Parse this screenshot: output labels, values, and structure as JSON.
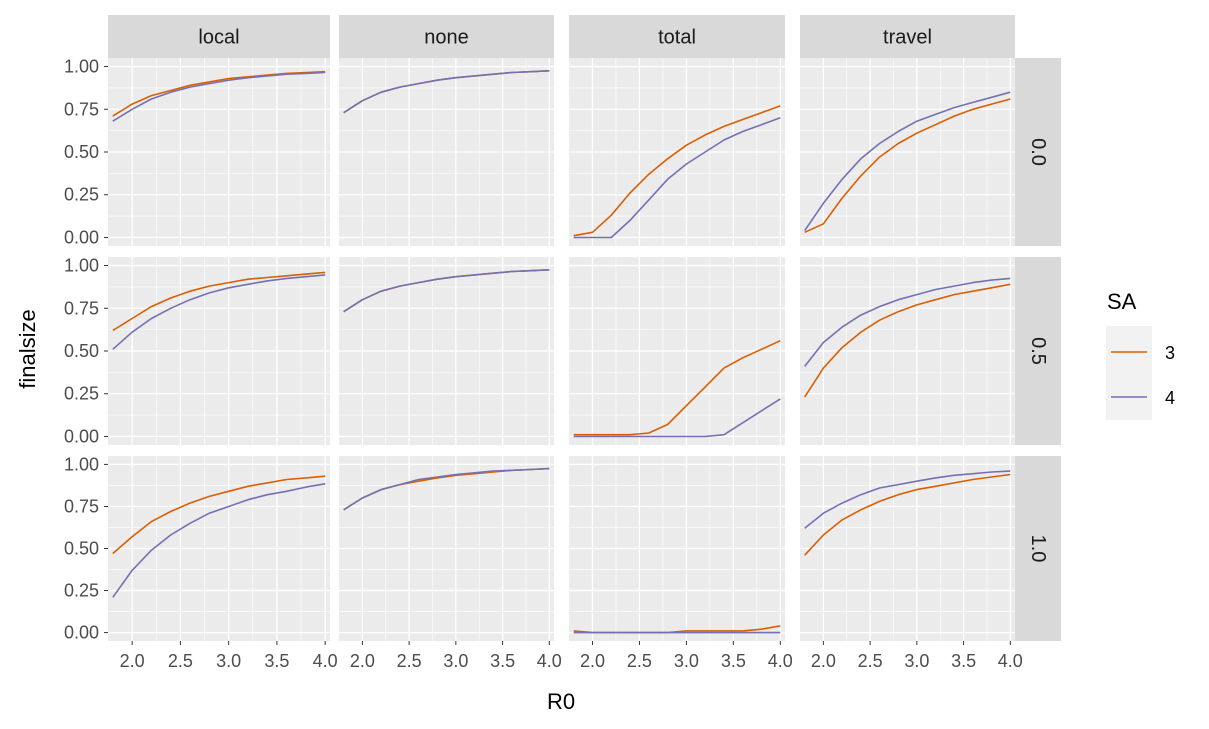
{
  "chart_data": {
    "type": "line",
    "facet_columns": [
      "local",
      "none",
      "total",
      "travel"
    ],
    "facet_rows": [
      "0.0",
      "0.5",
      "1.0"
    ],
    "xlabel": "R0",
    "ylabel": "finalsize",
    "xlim": [
      1.75,
      4.05
    ],
    "ylim": [
      -0.05,
      1.05
    ],
    "x_ticks": [
      "2.0",
      "2.5",
      "3.0",
      "3.5",
      "4.0"
    ],
    "y_ticks": [
      "0.00",
      "0.25",
      "0.50",
      "0.75",
      "1.00"
    ],
    "x": [
      1.8,
      2.0,
      2.2,
      2.4,
      2.6,
      2.8,
      3.0,
      3.2,
      3.4,
      3.6,
      3.8,
      4.0
    ],
    "legend": {
      "title": "SA",
      "position": "right",
      "entries": [
        "3",
        "4"
      ]
    },
    "colors": {
      "3": "#d95f02",
      "4": "#7570b3"
    },
    "background": {
      "panel": "#ebebeb",
      "strip": "#d9d9d9",
      "grid": "#ffffff"
    },
    "panels": [
      {
        "col": "local",
        "row": "0.0",
        "series": [
          {
            "name": "3",
            "values": [
              0.71,
              0.78,
              0.83,
              0.86,
              0.89,
              0.91,
              0.93,
              0.94,
              0.95,
              0.96,
              0.965,
              0.97
            ]
          },
          {
            "name": "4",
            "values": [
              0.68,
              0.75,
              0.81,
              0.85,
              0.88,
              0.9,
              0.92,
              0.935,
              0.945,
              0.955,
              0.96,
              0.965
            ]
          }
        ]
      },
      {
        "col": "none",
        "row": "0.0",
        "series": [
          {
            "name": "3",
            "values": [
              0.73,
              0.8,
              0.85,
              0.88,
              0.9,
              0.92,
              0.935,
              0.945,
              0.955,
              0.965,
              0.97,
              0.975
            ]
          },
          {
            "name": "4",
            "values": [
              0.73,
              0.8,
              0.85,
              0.88,
              0.9,
              0.92,
              0.935,
              0.945,
              0.955,
              0.965,
              0.97,
              0.975
            ]
          }
        ]
      },
      {
        "col": "total",
        "row": "0.0",
        "series": [
          {
            "name": "3",
            "values": [
              0.01,
              0.03,
              0.13,
              0.26,
              0.37,
              0.46,
              0.54,
              0.6,
              0.65,
              0.69,
              0.73,
              0.77
            ]
          },
          {
            "name": "4",
            "values": [
              0.0,
              0.0,
              0.0,
              0.1,
              0.22,
              0.34,
              0.43,
              0.5,
              0.57,
              0.62,
              0.66,
              0.7
            ]
          }
        ]
      },
      {
        "col": "travel",
        "row": "0.0",
        "series": [
          {
            "name": "3",
            "values": [
              0.03,
              0.08,
              0.23,
              0.36,
              0.47,
              0.55,
              0.61,
              0.66,
              0.71,
              0.75,
              0.78,
              0.81
            ]
          },
          {
            "name": "4",
            "values": [
              0.04,
              0.2,
              0.34,
              0.46,
              0.55,
              0.62,
              0.68,
              0.72,
              0.76,
              0.79,
              0.82,
              0.85
            ]
          }
        ]
      },
      {
        "col": "local",
        "row": "0.5",
        "series": [
          {
            "name": "3",
            "values": [
              0.62,
              0.69,
              0.76,
              0.81,
              0.85,
              0.88,
              0.9,
              0.92,
              0.93,
              0.94,
              0.95,
              0.96
            ]
          },
          {
            "name": "4",
            "values": [
              0.51,
              0.61,
              0.69,
              0.75,
              0.8,
              0.84,
              0.87,
              0.89,
              0.91,
              0.925,
              0.935,
              0.945
            ]
          }
        ]
      },
      {
        "col": "none",
        "row": "0.5",
        "series": [
          {
            "name": "3",
            "values": [
              0.73,
              0.8,
              0.85,
              0.88,
              0.9,
              0.92,
              0.935,
              0.945,
              0.955,
              0.965,
              0.97,
              0.975
            ]
          },
          {
            "name": "4",
            "values": [
              0.73,
              0.8,
              0.85,
              0.88,
              0.9,
              0.92,
              0.935,
              0.945,
              0.955,
              0.965,
              0.97,
              0.975
            ]
          }
        ]
      },
      {
        "col": "total",
        "row": "0.5",
        "series": [
          {
            "name": "3",
            "values": [
              0.01,
              0.01,
              0.01,
              0.01,
              0.02,
              0.07,
              0.18,
              0.29,
              0.4,
              0.46,
              0.51,
              0.56
            ]
          },
          {
            "name": "4",
            "values": [
              0.0,
              0.0,
              0.0,
              0.0,
              0.0,
              0.0,
              0.0,
              0.0,
              0.01,
              0.08,
              0.15,
              0.22
            ]
          }
        ]
      },
      {
        "col": "travel",
        "row": "0.5",
        "series": [
          {
            "name": "3",
            "values": [
              0.23,
              0.4,
              0.52,
              0.61,
              0.68,
              0.73,
              0.77,
              0.8,
              0.83,
              0.85,
              0.87,
              0.89
            ]
          },
          {
            "name": "4",
            "values": [
              0.41,
              0.55,
              0.64,
              0.71,
              0.76,
              0.8,
              0.83,
              0.86,
              0.88,
              0.9,
              0.915,
              0.925
            ]
          }
        ]
      },
      {
        "col": "local",
        "row": "1.0",
        "series": [
          {
            "name": "3",
            "values": [
              0.47,
              0.57,
              0.66,
              0.72,
              0.77,
              0.81,
              0.84,
              0.87,
              0.89,
              0.91,
              0.92,
              0.93
            ]
          },
          {
            "name": "4",
            "values": [
              0.21,
              0.37,
              0.49,
              0.58,
              0.65,
              0.71,
              0.75,
              0.79,
              0.82,
              0.84,
              0.865,
              0.885
            ]
          }
        ]
      },
      {
        "col": "none",
        "row": "1.0",
        "series": [
          {
            "name": "3",
            "values": [
              0.73,
              0.8,
              0.85,
              0.88,
              0.9,
              0.92,
              0.935,
              0.945,
              0.955,
              0.965,
              0.97,
              0.975
            ]
          },
          {
            "name": "4",
            "values": [
              0.73,
              0.8,
              0.85,
              0.88,
              0.91,
              0.925,
              0.94,
              0.95,
              0.96,
              0.965,
              0.97,
              0.975
            ]
          }
        ]
      },
      {
        "col": "total",
        "row": "1.0",
        "series": [
          {
            "name": "3",
            "values": [
              0.01,
              0.0,
              0.0,
              0.0,
              0.0,
              0.0,
              0.01,
              0.01,
              0.01,
              0.01,
              0.02,
              0.04
            ]
          },
          {
            "name": "4",
            "values": [
              0.0,
              0.0,
              0.0,
              0.0,
              0.0,
              0.0,
              0.0,
              0.0,
              0.0,
              0.0,
              0.0,
              0.0
            ]
          }
        ]
      },
      {
        "col": "travel",
        "row": "1.0",
        "series": [
          {
            "name": "3",
            "values": [
              0.46,
              0.58,
              0.67,
              0.73,
              0.78,
              0.82,
              0.85,
              0.87,
              0.89,
              0.91,
              0.925,
              0.94
            ]
          },
          {
            "name": "4",
            "values": [
              0.62,
              0.71,
              0.77,
              0.82,
              0.86,
              0.88,
              0.9,
              0.92,
              0.935,
              0.945,
              0.955,
              0.96
            ]
          }
        ]
      }
    ]
  }
}
